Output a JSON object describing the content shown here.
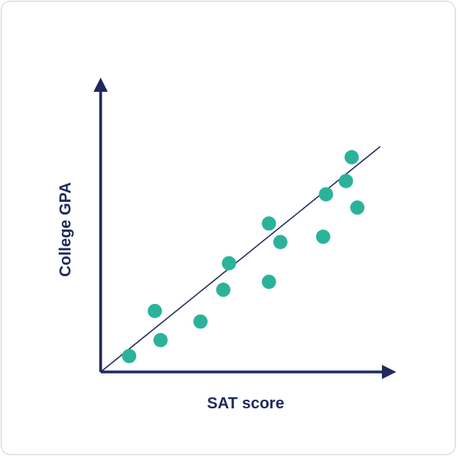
{
  "chart_data": {
    "type": "scatter",
    "title": "",
    "xlabel": "SAT score",
    "ylabel": "College GPA",
    "xlim": [
      0,
      100
    ],
    "ylim": [
      0,
      100
    ],
    "grid": false,
    "legend": "none",
    "points": [
      {
        "x": 10,
        "y": 6
      },
      {
        "x": 19,
        "y": 23
      },
      {
        "x": 21,
        "y": 12
      },
      {
        "x": 35,
        "y": 19
      },
      {
        "x": 43,
        "y": 31
      },
      {
        "x": 45,
        "y": 41
      },
      {
        "x": 59,
        "y": 34
      },
      {
        "x": 59,
        "y": 56
      },
      {
        "x": 63,
        "y": 49
      },
      {
        "x": 78,
        "y": 51
      },
      {
        "x": 79,
        "y": 67
      },
      {
        "x": 86,
        "y": 72
      },
      {
        "x": 88,
        "y": 81
      },
      {
        "x": 90,
        "y": 62
      }
    ],
    "trendline": {
      "x": [
        0,
        98
      ],
      "y": [
        0,
        85
      ]
    },
    "colors": {
      "points": "#2bb39a",
      "axis": "#1f2a5c",
      "trendline": "#1f2a5c"
    }
  }
}
